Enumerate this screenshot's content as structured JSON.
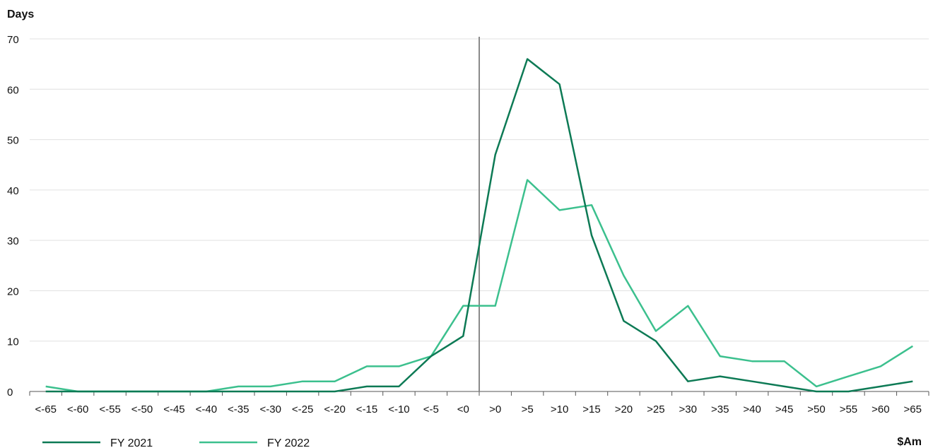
{
  "chart_data": {
    "type": "line",
    "ylabel": "Days",
    "xlabel": "$Am",
    "ylim": [
      0,
      70
    ],
    "yticks": [
      0,
      10,
      20,
      30,
      40,
      50,
      60,
      70
    ],
    "grid": true,
    "legend_position": "bottom-left",
    "categories": [
      "<-65",
      "<-60",
      "<-55",
      "<-50",
      "<-45",
      "<-40",
      "<-35",
      "<-30",
      "<-25",
      "<-20",
      "<-15",
      "<-10",
      "<-5",
      "<0",
      ">0",
      ">5",
      ">10",
      ">15",
      ">20",
      ">25",
      ">30",
      ">35",
      ">40",
      ">45",
      ">50",
      ">55",
      ">60",
      ">65"
    ],
    "reference_line_between": [
      "<0",
      ">0"
    ],
    "series": [
      {
        "name": "FY 2021",
        "color": "#0d7a55",
        "values": [
          0,
          0,
          0,
          0,
          0,
          0,
          0,
          0,
          0,
          0,
          1,
          1,
          7,
          11,
          47,
          66,
          61,
          31,
          14,
          10,
          2,
          3,
          2,
          1,
          0,
          0,
          1,
          2
        ]
      },
      {
        "name": "FY 2022",
        "color": "#3cc08e",
        "values": [
          1,
          0,
          0,
          0,
          0,
          0,
          1,
          1,
          2,
          2,
          5,
          5,
          7,
          17,
          17,
          42,
          36,
          37,
          23,
          12,
          17,
          7,
          6,
          6,
          1,
          3,
          5,
          9
        ]
      }
    ]
  }
}
